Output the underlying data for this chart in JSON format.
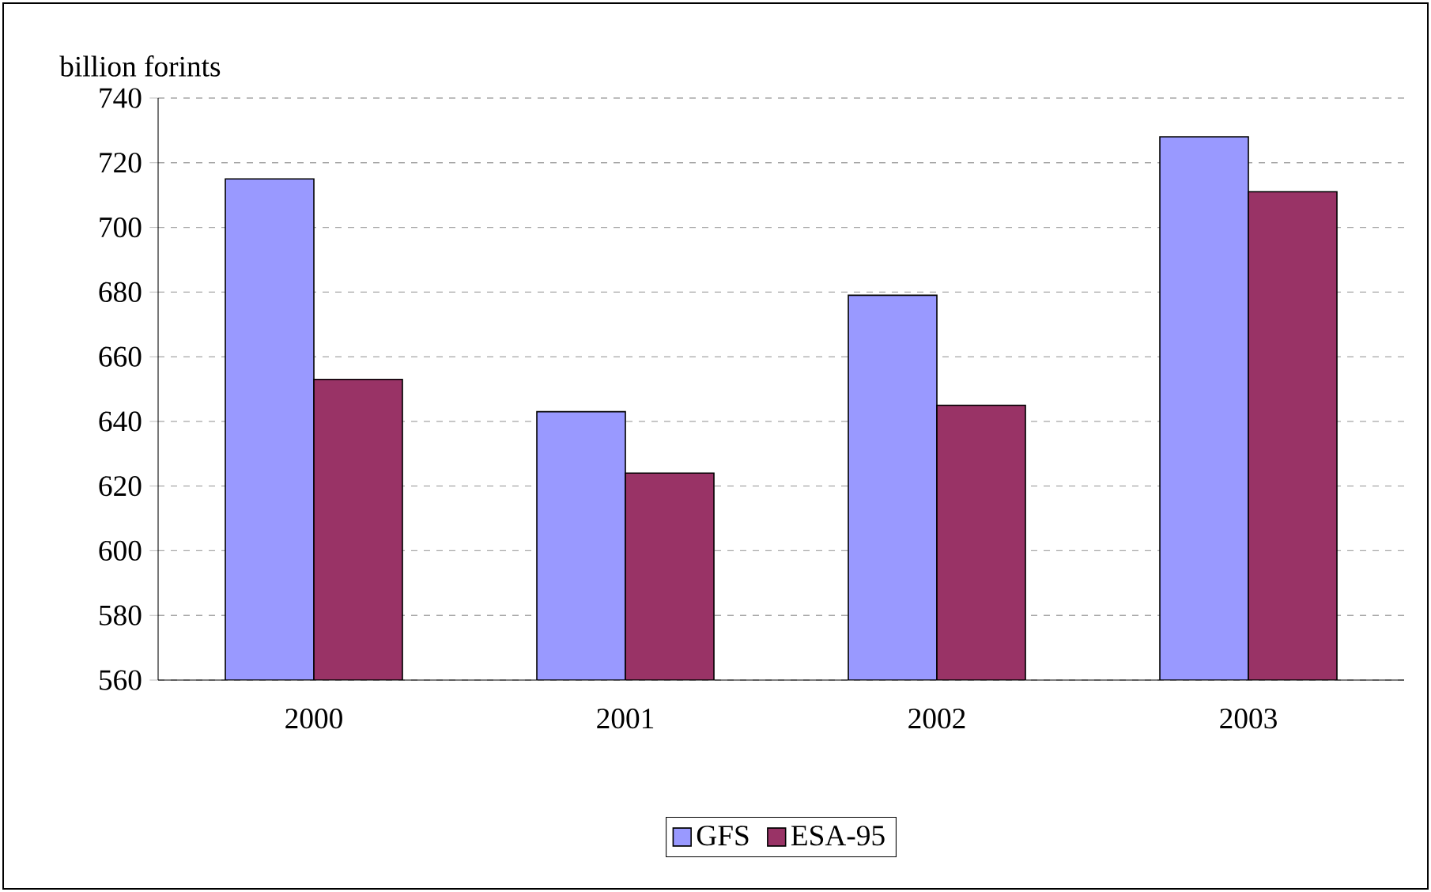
{
  "chart_data": {
    "type": "bar",
    "ylabel": "billion forints",
    "categories": [
      "2000",
      "2001",
      "2002",
      "2003"
    ],
    "series": [
      {
        "name": "GFS",
        "color": "#9999ff",
        "values": [
          715,
          643,
          679,
          728
        ]
      },
      {
        "name": "ESA-95",
        "color": "#993366",
        "values": [
          653,
          624,
          645,
          711
        ]
      }
    ],
    "ylim": [
      560,
      740
    ],
    "yticks": [
      560,
      580,
      600,
      620,
      640,
      660,
      680,
      700,
      720,
      740
    ],
    "grid": "y",
    "legend": "bottom"
  }
}
